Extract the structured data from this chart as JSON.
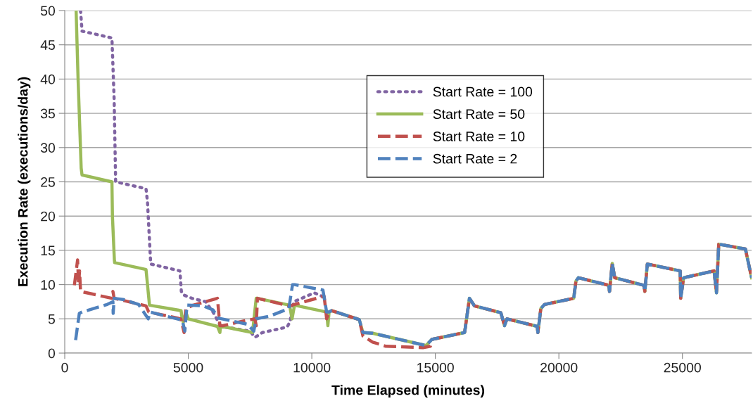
{
  "chart_data": {
    "type": "line",
    "xlabel": "Time Elapsed (minutes)",
    "ylabel": "Execution Rate (executions/day)",
    "xlim": [
      0,
      27800
    ],
    "xticks": [
      0,
      5000,
      10000,
      15000,
      20000,
      25000
    ],
    "ylim": [
      0,
      50
    ],
    "yticks": [
      0,
      5,
      10,
      15,
      20,
      25,
      30,
      35,
      40,
      45,
      50
    ],
    "grid": "y",
    "legend": "top right",
    "marker": "none",
    "series": [
      {
        "name": "Start Rate = 100",
        "color": "#8064a2",
        "line_style": "dotted",
        "x": [
          640,
          700,
          1910,
          2000,
          2060,
          3290,
          3350,
          3480,
          4660,
          4720,
          4800,
          5150,
          5700,
          6000,
          6300,
          6500,
          7500,
          7700,
          8000,
          9000,
          9120,
          9270,
          10100,
          10600
        ],
        "values": [
          50,
          47,
          46,
          37,
          25,
          24,
          22,
          13,
          12,
          9,
          8.5,
          8,
          7.5,
          6,
          4,
          3.8,
          3.2,
          2.3,
          3,
          3.8,
          4.6,
          7.5,
          8.8,
          8
        ]
      },
      {
        "name": "Start Rate = 50",
        "color": "#9bbb59",
        "line_style": "solid",
        "x": [
          460,
          540,
          665,
          700,
          1910,
          1930,
          2010,
          2020,
          3290,
          3430,
          4710,
          4750,
          4800,
          4900,
          5000,
          6180,
          6280,
          6300,
          6500,
          7600,
          7750,
          7800,
          9100,
          9200,
          9300,
          10600,
          10650,
          10700,
          10800,
          11920,
          12070,
          12460,
          14620,
          14860,
          16185,
          16380,
          16580,
          17650,
          17800,
          17900,
          19125,
          19150,
          19270,
          19420,
          20600,
          20690,
          20790,
          22015,
          22050,
          22160,
          22260,
          23440,
          23480,
          23580,
          24910,
          24930,
          25050,
          26280,
          26380,
          26470,
          27550,
          27800
        ],
        "values": [
          50,
          40,
          27,
          26,
          25,
          20,
          13.5,
          13.2,
          12.2,
          7,
          6.2,
          5,
          4.5,
          6,
          5,
          3.9,
          3,
          3.8,
          3.8,
          3.0,
          8,
          8,
          7,
          5,
          7,
          6,
          4,
          6,
          6.2,
          4.9,
          3,
          2.9,
          1.1,
          2,
          3.0,
          8,
          6.9,
          5.9,
          4,
          5.0,
          3.9,
          3,
          6.5,
          7.1,
          8,
          10.5,
          11,
          9.9,
          9,
          13.1,
          11,
          9.9,
          9,
          13,
          12.0,
          8,
          11,
          12,
          8.8,
          15.9,
          15.2,
          11
        ]
      },
      {
        "name": "Start Rate = 10",
        "color": "#c0504d",
        "line_style": "dashed",
        "x": [
          390,
          520,
          560,
          600,
          640,
          1910,
          1950,
          2000,
          3290,
          3400,
          4700,
          4830,
          4900,
          5200,
          6180,
          6280,
          6400,
          7000,
          7700,
          7750,
          7800,
          9075,
          9200,
          10500,
          10600,
          10700,
          10800,
          11920,
          12070,
          12460,
          13000,
          14500,
          14800,
          14860,
          16185,
          16380,
          16580,
          17650,
          17800,
          17900,
          19125,
          19150,
          19270,
          19420,
          20600,
          20690,
          20790,
          22015,
          22050,
          22160,
          22260,
          23440,
          23480,
          23580,
          24910,
          24930,
          25050,
          26280,
          26380,
          26470,
          27550,
          27800
        ],
        "values": [
          9.9,
          13.6,
          10,
          12,
          9.0,
          8,
          9,
          8,
          6.9,
          6,
          5.0,
          3,
          6.5,
          7,
          8,
          4,
          4,
          4.5,
          5,
          4,
          8,
          6.9,
          7,
          8.3,
          5,
          6,
          6.2,
          4.9,
          2.5,
          1.6,
          1.0,
          0.8,
          1.0,
          2,
          3.0,
          8,
          6.9,
          5.9,
          4,
          5.0,
          3.9,
          3,
          6.5,
          7.1,
          8,
          10.5,
          11,
          9.9,
          9,
          13.1,
          11,
          9.9,
          9,
          13,
          12.0,
          8,
          11,
          12,
          8.8,
          15.9,
          15.2,
          11
        ]
      },
      {
        "name": "Start Rate = 2",
        "color": "#4f81bd",
        "line_style": "dashed",
        "x": [
          440,
          590,
          700,
          1720,
          1950,
          1960,
          2000,
          2400,
          2990,
          3380,
          3450,
          4760,
          4860,
          4950,
          5600,
          6000,
          6230,
          7400,
          7650,
          7750,
          8300,
          9070,
          9220,
          9300,
          10450,
          10600,
          10700,
          10800,
          11920,
          12070,
          12460,
          14620,
          14860,
          16185,
          16380,
          16580,
          17650,
          17800,
          17900,
          19125,
          19150,
          19270,
          19420,
          20600,
          20690,
          20790,
          22015,
          22050,
          22160,
          22260,
          23440,
          23480,
          23580,
          24910,
          24930,
          25050,
          26280,
          26380,
          26470,
          27550,
          27800
        ],
        "values": [
          1.9,
          5.8,
          6,
          7.1,
          7.5,
          5.8,
          8,
          7.8,
          7.1,
          5,
          6,
          4.8,
          3.2,
          7,
          6.9,
          6.3,
          5.1,
          4.2,
          3.2,
          5,
          5.4,
          6.5,
          10,
          10,
          9.2,
          6,
          6,
          6.2,
          4.9,
          3,
          2.9,
          1.1,
          2,
          3.0,
          8,
          6.9,
          5.9,
          4,
          5.0,
          3.9,
          3,
          6.5,
          7.1,
          8,
          10.5,
          11,
          9.9,
          9,
          13.1,
          11,
          9.9,
          9,
          13,
          12.0,
          8,
          11,
          12,
          8.8,
          15.9,
          15.2,
          11
        ]
      }
    ]
  }
}
